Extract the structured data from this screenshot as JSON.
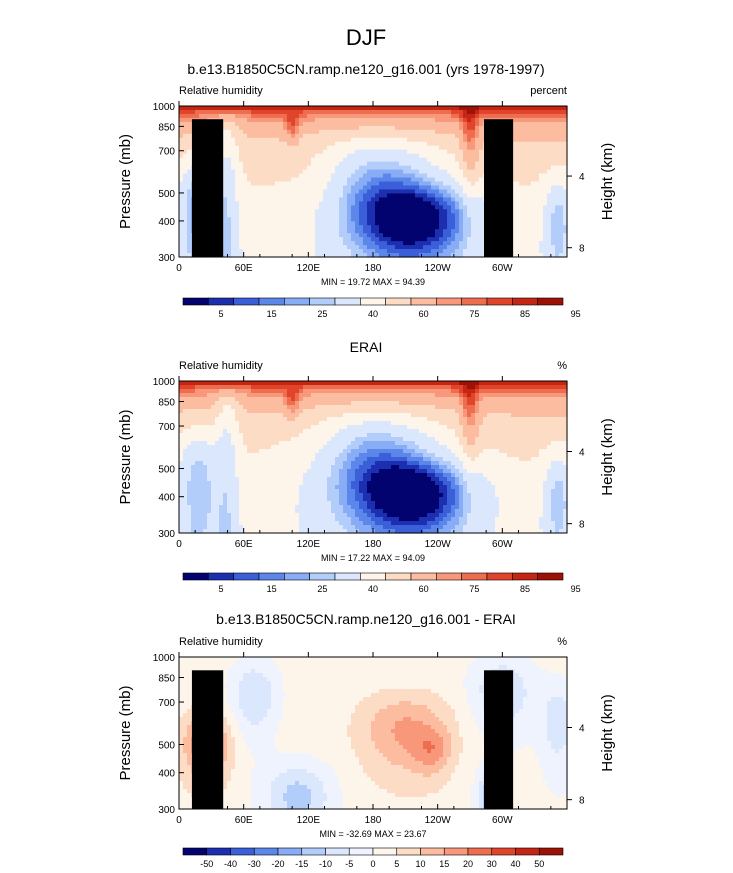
{
  "figure_title": "DJF",
  "colors": {
    "abs_scale": [
      "#02036e",
      "#1c2fb0",
      "#3a5fd9",
      "#5c87ea",
      "#88acf5",
      "#b3cdfb",
      "#dbe7fd",
      "#fdf4ea",
      "#fddcc6",
      "#fcbca0",
      "#f8977a",
      "#ef6d4f",
      "#e0452c",
      "#c52614",
      "#9d1207"
    ],
    "diff_scale": [
      "#02036e",
      "#1c2fb0",
      "#3a5fd9",
      "#5c87ea",
      "#88acf5",
      "#b3cdfb",
      "#dbe7fd",
      "#eef3fe",
      "#fdf4ea",
      "#fddcc6",
      "#fcbca0",
      "#f8977a",
      "#ef6d4f",
      "#e0452c",
      "#c52614",
      "#9d1207"
    ],
    "land_mask": "#000000"
  },
  "chart_data": [
    {
      "type": "heatmap",
      "title": "b.e13.B1850C5CN.ramp.ne120_g16.001 (yrs 1978-1997)",
      "left_label": "Relative humidity",
      "right_label": "percent",
      "ylabel": "Pressure (mb)",
      "y2label": "Height (km)",
      "x_ticks": [
        "0",
        "60E",
        "120E",
        "180",
        "120W",
        "60W"
      ],
      "y_ticks": [
        "300",
        "400",
        "500",
        "700",
        "850",
        "1000"
      ],
      "y2_ticks": [
        "8",
        "4"
      ],
      "ylim": [
        1000,
        300
      ],
      "xlim": [
        0,
        360
      ],
      "minmax": "MIN = 19.72  MAX = 94.39",
      "colorbar_ticks": [
        "5",
        "15",
        "25",
        "40",
        "60",
        "75",
        "85",
        "95"
      ]
    },
    {
      "type": "heatmap",
      "title": "ERAI",
      "left_label": "Relative humidity",
      "right_label": "%",
      "ylabel": "Pressure (mb)",
      "y2label": "Height (km)",
      "x_ticks": [
        "0",
        "60E",
        "120E",
        "180",
        "120W",
        "60W"
      ],
      "y_ticks": [
        "300",
        "400",
        "500",
        "700",
        "850",
        "1000"
      ],
      "y2_ticks": [
        "8",
        "4"
      ],
      "ylim": [
        1000,
        300
      ],
      "xlim": [
        0,
        360
      ],
      "minmax": "MIN = 17.22  MAX = 94.09",
      "colorbar_ticks": [
        "5",
        "15",
        "25",
        "40",
        "60",
        "75",
        "85",
        "95"
      ]
    },
    {
      "type": "heatmap",
      "title": "b.e13.B1850C5CN.ramp.ne120_g16.001 - ERAI",
      "left_label": "Relative humidity",
      "right_label": "%",
      "ylabel": "Pressure (mb)",
      "y2label": "Height (km)",
      "x_ticks": [
        "0",
        "60E",
        "120E",
        "180",
        "120W",
        "60W"
      ],
      "y_ticks": [
        "300",
        "400",
        "500",
        "700",
        "850",
        "1000"
      ],
      "y2_ticks": [
        "8",
        "4"
      ],
      "ylim": [
        1000,
        300
      ],
      "xlim": [
        0,
        360
      ],
      "minmax": "MIN = -32.69  MAX = 23.67",
      "colorbar_ticks": [
        "-50",
        "-40",
        "-30",
        "-20",
        "-15",
        "-10",
        "-5",
        "0",
        "5",
        "10",
        "15",
        "20",
        "30",
        "40",
        "50"
      ]
    }
  ]
}
